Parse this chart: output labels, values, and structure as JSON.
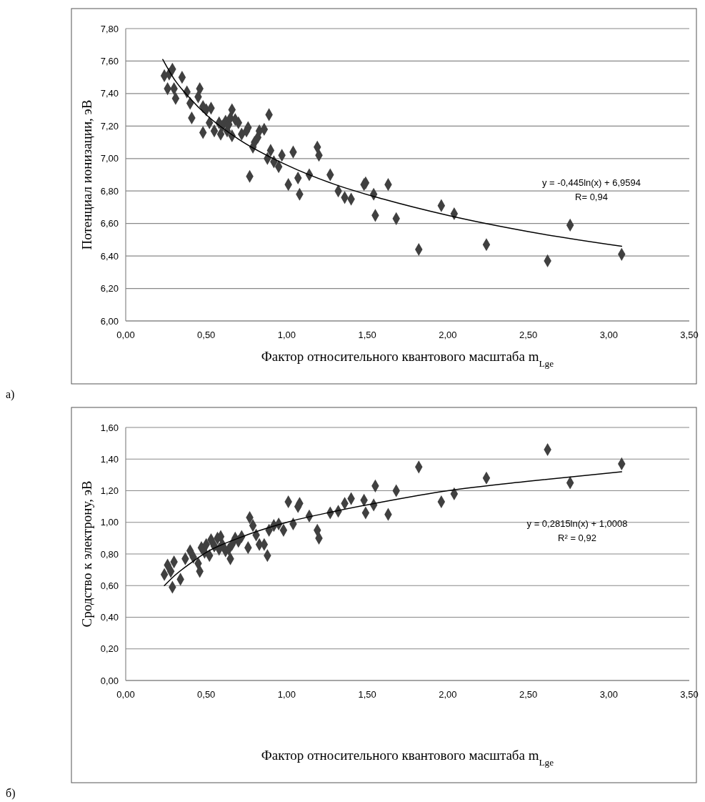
{
  "chart_data": [
    {
      "type": "scatter",
      "xlabel": "Фактор относительного квантового масштаба m$_{Lge}$",
      "ylabel": "Потенциал ионизации, эВ",
      "xlim": [
        0,
        3.5
      ],
      "ylim": [
        6,
        7.8
      ],
      "xticks": [
        {
          "value": 0,
          "label": "0,00"
        },
        {
          "value": 0.5,
          "label": "0,50"
        },
        {
          "value": 1,
          "label": "1,00"
        },
        {
          "value": 1.5,
          "label": "1,50"
        },
        {
          "value": 2,
          "label": "2,00"
        },
        {
          "value": 2.5,
          "label": "2,50"
        },
        {
          "value": 3,
          "label": "3,00"
        },
        {
          "value": 3.5,
          "label": "3,50"
        }
      ],
      "yticks": [
        {
          "value": 6,
          "label": "6,00"
        },
        {
          "value": 6.2,
          "label": "6,20"
        },
        {
          "value": 6.4,
          "label": "6,40"
        },
        {
          "value": 6.6,
          "label": "6,60"
        },
        {
          "value": 6.8,
          "label": "6,80"
        },
        {
          "value": 7,
          "label": "7,00"
        },
        {
          "value": 7.2,
          "label": "7,20"
        },
        {
          "value": 7.4,
          "label": "7,40"
        },
        {
          "value": 7.6,
          "label": "7,60"
        },
        {
          "value": 7.8,
          "label": "7,80"
        }
      ],
      "grid": "y",
      "annotations": [
        "y = -0,445ln(x) + 6,9594",
        "R= 0,94",
        "а)"
      ],
      "series": [
        {
          "marker": "diamond",
          "color": "#404040",
          "x": [
            0.24,
            0.26,
            0.27,
            0.29,
            0.3,
            0.31,
            0.35,
            0.38,
            0.4,
            0.41,
            0.45,
            0.46,
            0.48,
            0.48,
            0.5,
            0.52,
            0.53,
            0.55,
            0.58,
            0.59,
            0.6,
            0.62,
            0.63,
            0.64,
            0.65,
            0.66,
            0.66,
            0.68,
            0.7,
            0.72,
            0.75,
            0.76,
            0.77,
            0.79,
            0.8,
            0.82,
            0.83,
            0.86,
            0.88,
            0.89,
            0.9,
            0.92,
            0.95,
            0.97,
            1.01,
            1.04,
            1.07,
            1.08,
            1.14,
            1.19,
            1.2,
            1.27,
            1.32,
            1.36,
            1.4,
            1.48,
            1.49,
            1.54,
            1.55,
            1.63,
            1.68,
            1.82,
            1.96,
            2.04,
            2.24,
            2.62,
            2.76,
            3.08
          ],
          "values": [
            7.51,
            7.43,
            7.52,
            7.55,
            7.43,
            7.37,
            7.5,
            7.41,
            7.34,
            7.25,
            7.38,
            7.43,
            7.16,
            7.32,
            7.3,
            7.22,
            7.31,
            7.17,
            7.22,
            7.15,
            7.2,
            7.23,
            7.17,
            7.21,
            7.25,
            7.3,
            7.14,
            7.24,
            7.22,
            7.15,
            7.17,
            7.19,
            6.89,
            7.07,
            7.1,
            7.13,
            7.17,
            7.18,
            7,
            7.27,
            7.05,
            6.98,
            6.95,
            7.02,
            6.84,
            7.04,
            6.88,
            6.78,
            6.9,
            7.07,
            7.02,
            6.9,
            6.8,
            6.76,
            6.75,
            6.84,
            6.85,
            6.78,
            6.65,
            6.84,
            6.63,
            6.44,
            6.71,
            6.66,
            6.47,
            6.37,
            6.59,
            6.41
          ]
        },
        {
          "type": "line",
          "marker": "none",
          "color": "#000000",
          "line_style": "solid",
          "x": [
            0.23,
            0.3,
            0.4,
            0.5,
            0.7,
            1,
            1.3,
            1.6,
            2,
            2.5,
            3.08
          ],
          "values": [
            7.61,
            7.49,
            7.37,
            7.27,
            7.12,
            6.96,
            6.84,
            6.75,
            6.65,
            6.55,
            6.46
          ]
        }
      ]
    },
    {
      "type": "scatter",
      "xlabel": "Фактор относительного квантового масштаба m$_{Lge}$",
      "ylabel": "Сродство к электрону, эВ",
      "xlim": [
        0,
        3.5
      ],
      "ylim": [
        0,
        1.6
      ],
      "xticks": [
        {
          "value": 0,
          "label": "0,00"
        },
        {
          "value": 0.5,
          "label": "0,50"
        },
        {
          "value": 1,
          "label": "1,00"
        },
        {
          "value": 1.5,
          "label": "1,50"
        },
        {
          "value": 2,
          "label": "2,00"
        },
        {
          "value": 2.5,
          "label": "2,50"
        },
        {
          "value": 3,
          "label": "3,00"
        },
        {
          "value": 3.5,
          "label": "3,50"
        }
      ],
      "yticks": [
        {
          "value": 0,
          "label": "0,00"
        },
        {
          "value": 0.2,
          "label": "0,20"
        },
        {
          "value": 0.4,
          "label": "0,40"
        },
        {
          "value": 0.6,
          "label": "0,60"
        },
        {
          "value": 0.8,
          "label": "0,80"
        },
        {
          "value": 1,
          "label": "1,00"
        },
        {
          "value": 1.2,
          "label": "1,20"
        },
        {
          "value": 1.4,
          "label": "1,40"
        },
        {
          "value": 1.6,
          "label": "1,60"
        }
      ],
      "grid": "y",
      "annotations": [
        "y = 0,2815ln(x) + 1,0008",
        "R² = 0,92",
        "б)"
      ],
      "series": [
        {
          "marker": "diamond",
          "color": "#404040",
          "x": [
            0.24,
            0.26,
            0.28,
            0.29,
            0.3,
            0.34,
            0.37,
            0.4,
            0.42,
            0.45,
            0.46,
            0.47,
            0.49,
            0.5,
            0.52,
            0.53,
            0.55,
            0.57,
            0.58,
            0.59,
            0.6,
            0.62,
            0.64,
            0.65,
            0.66,
            0.68,
            0.7,
            0.72,
            0.76,
            0.77,
            0.79,
            0.81,
            0.83,
            0.86,
            0.88,
            0.89,
            0.92,
            0.95,
            0.98,
            1.01,
            1.04,
            1.07,
            1.08,
            1.14,
            1.19,
            1.2,
            1.27,
            1.32,
            1.36,
            1.4,
            1.48,
            1.49,
            1.54,
            1.55,
            1.63,
            1.68,
            1.82,
            1.96,
            2.04,
            2.24,
            2.62,
            2.76,
            3.08
          ],
          "values": [
            0.67,
            0.73,
            0.69,
            0.59,
            0.75,
            0.64,
            0.77,
            0.82,
            0.78,
            0.74,
            0.69,
            0.84,
            0.81,
            0.86,
            0.79,
            0.89,
            0.85,
            0.9,
            0.83,
            0.91,
            0.86,
            0.82,
            0.83,
            0.77,
            0.86,
            0.9,
            0.88,
            0.91,
            0.84,
            1.03,
            0.98,
            0.92,
            0.86,
            0.86,
            0.79,
            0.95,
            0.98,
            0.99,
            0.95,
            1.13,
            0.99,
            1.1,
            1.12,
            1.04,
            0.95,
            0.9,
            1.06,
            1.07,
            1.12,
            1.15,
            1.14,
            1.06,
            1.11,
            1.23,
            1.05,
            1.2,
            1.35,
            1.13,
            1.18,
            1.28,
            1.46,
            1.25,
            1.37
          ]
        },
        {
          "type": "line",
          "marker": "none",
          "color": "#000000",
          "line_style": "solid",
          "x": [
            0.24,
            0.3,
            0.4,
            0.5,
            0.7,
            1,
            1.3,
            1.6,
            2,
            2.5,
            3.08
          ],
          "values": [
            0.6,
            0.66,
            0.74,
            0.81,
            0.9,
            1,
            1.07,
            1.13,
            1.2,
            1.26,
            1.32
          ]
        }
      ]
    }
  ]
}
